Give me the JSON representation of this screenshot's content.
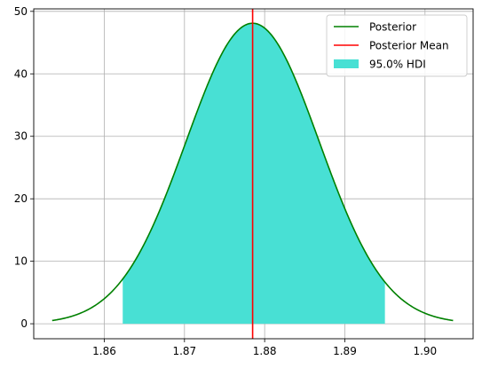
{
  "chart_data": {
    "type": "area",
    "title": "",
    "xlabel": "",
    "ylabel": "",
    "xlim": [
      1.8512,
      1.906
    ],
    "ylim": [
      -2.4,
      50.4
    ],
    "grid": true,
    "legend_position": "top-right",
    "x_ticks": [
      1.86,
      1.87,
      1.88,
      1.89,
      1.9
    ],
    "x_tick_labels": [
      "1.86",
      "1.87",
      "1.88",
      "1.89",
      "1.90"
    ],
    "y_ticks": [
      0,
      10,
      20,
      30,
      40,
      50
    ],
    "y_tick_labels": [
      "0",
      "10",
      "20",
      "30",
      "40",
      "50"
    ],
    "distribution": {
      "mean": 1.8785,
      "sd": 0.0083,
      "peak": 48.1
    },
    "x_range": [
      1.8535,
      1.9035
    ],
    "hdi": {
      "lower": 1.8623,
      "upper": 1.895
    },
    "posterior_mean": 1.8785,
    "series": [
      {
        "name": "Posterior",
        "kind": "line",
        "color": "#008000"
      },
      {
        "name": "Posterior Mean",
        "kind": "vline",
        "color": "#ff0000"
      },
      {
        "name": "95.0% HDI",
        "kind": "fill",
        "color": "#48e0d4"
      }
    ]
  }
}
